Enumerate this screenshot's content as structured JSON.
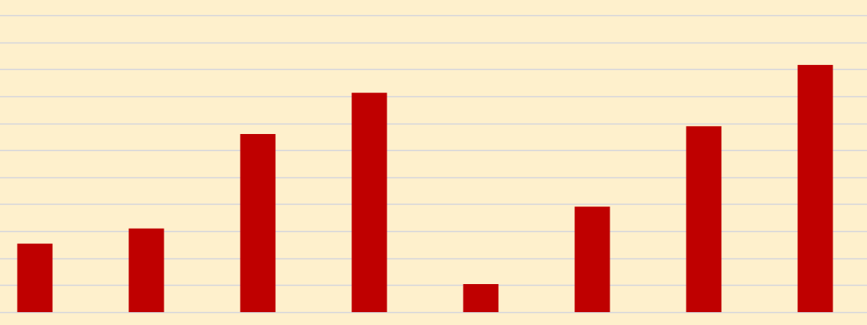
{
  "chart_data": {
    "type": "bar",
    "values": [
      25.4,
      31.0,
      66.0,
      81.3,
      10.4,
      39.1,
      68.9,
      91.6
    ],
    "ylim": [
      0,
      100
    ],
    "yticks": [
      0,
      10,
      20,
      30,
      40,
      50,
      60,
      70,
      80,
      90,
      100,
      110
    ],
    "grid": true,
    "title": "",
    "xlabel": "",
    "ylabel": "",
    "colors": {
      "background": "#FEF0CC",
      "bar": "#BF0000",
      "grid": "#D5D5DC"
    }
  }
}
